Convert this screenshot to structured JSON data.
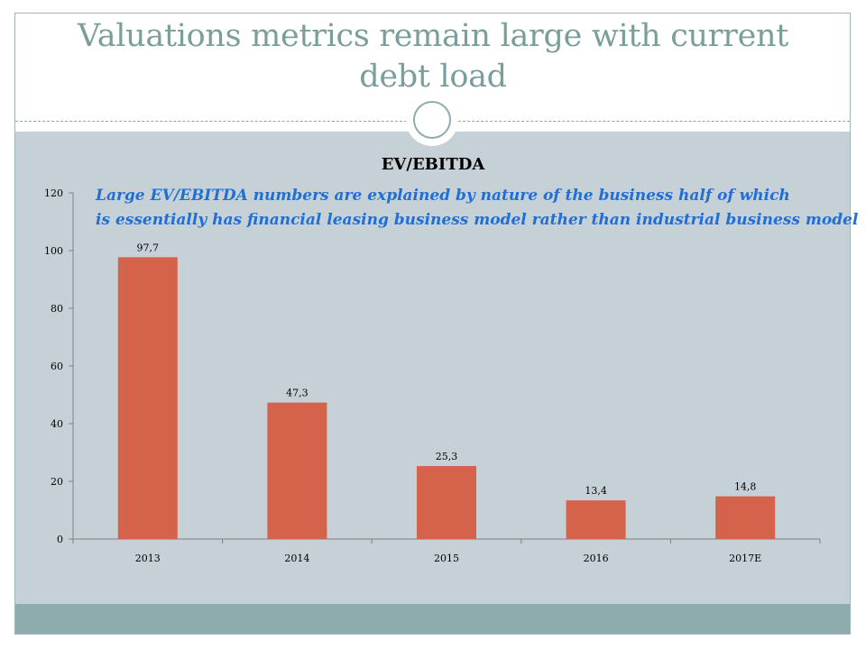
{
  "slide": {
    "title_line1": "Valuations metrics remain large with current",
    "title_line2": "debt load"
  },
  "colors": {
    "bar": "#d5624a",
    "title": "#7a9e9b",
    "annotation": "#1f6fd6"
  },
  "chart_data": {
    "type": "bar",
    "title": "EV/EBITDA",
    "categories": [
      "2013",
      "2014",
      "2015",
      "2016",
      "2017E"
    ],
    "values": [
      97.7,
      47.3,
      25.3,
      13.4,
      14.8
    ],
    "data_labels": [
      "97,7",
      "47,3",
      "25,3",
      "13,4",
      "14,8"
    ],
    "ylim": [
      0,
      120
    ],
    "yticks": [
      "0",
      "20",
      "40",
      "60",
      "80",
      "100",
      "120"
    ],
    "xlabel": "",
    "ylabel": "",
    "annotation_line1": "Large EV/EBITDA  numbers are explained by nature of the business half of which",
    "annotation_line2": "is essentially has financial leasing business model rather than industrial business model"
  }
}
